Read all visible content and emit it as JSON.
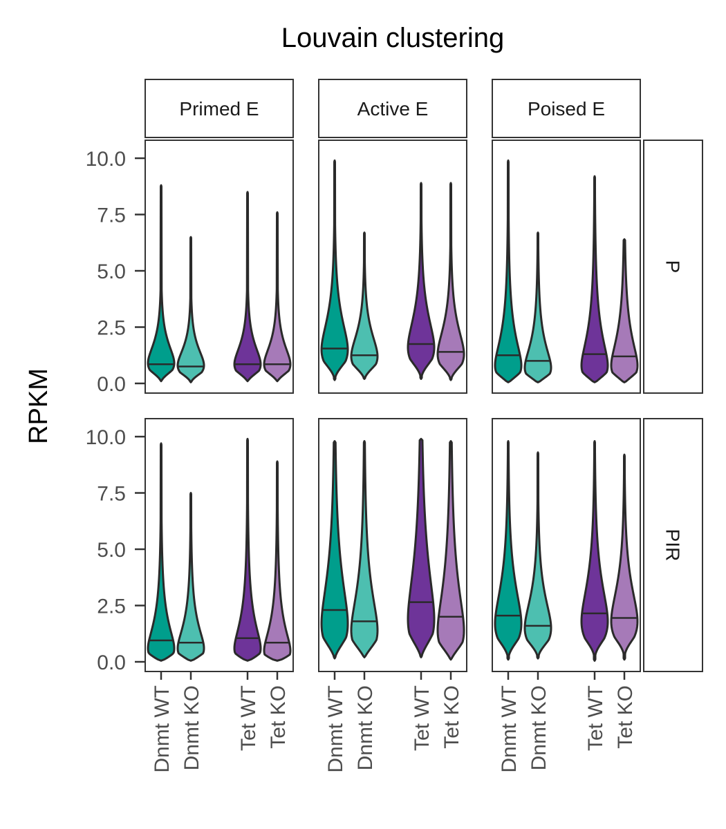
{
  "chart_data": {
    "type": "violin",
    "title": "Louvain clustering",
    "ylabel": "RPKM",
    "xlabel": "",
    "ylim": [
      0,
      10.4
    ],
    "yticks": [
      0,
      2.5,
      5,
      7.5,
      10
    ],
    "ytick_labels": [
      "0.0",
      "2.5",
      "5.0",
      "7.5",
      "10.0"
    ],
    "categories": [
      "Dnmt WT",
      "Dnmt KO",
      "Tet WT",
      "Tet KO"
    ],
    "column_facets": [
      "Primed E",
      "Active E",
      "Poised E"
    ],
    "row_facets": [
      "P",
      "PIR"
    ],
    "colors": {
      "Dnmt WT": "#009E8C",
      "Dnmt KO": "#4DBFB0",
      "Tet WT": "#6E3499",
      "Tet KO": "#A67AB8",
      "outline": "#2a2a2a"
    },
    "grid": false,
    "legend": "none",
    "panels": [
      {
        "row": "P",
        "col": "Primed E",
        "violins": [
          {
            "group": "Dnmt WT",
            "min": 0.1,
            "max": 8.8,
            "median": 0.85,
            "mode": 0.9,
            "spread": 0.5
          },
          {
            "group": "Dnmt KO",
            "min": 0.05,
            "max": 6.5,
            "median": 0.75,
            "mode": 0.8,
            "spread": 0.45
          },
          {
            "group": "Tet WT",
            "min": 0.1,
            "max": 8.5,
            "median": 0.85,
            "mode": 0.85,
            "spread": 0.5
          },
          {
            "group": "Tet KO",
            "min": 0.1,
            "max": 7.6,
            "median": 0.85,
            "mode": 0.85,
            "spread": 0.5
          }
        ]
      },
      {
        "row": "P",
        "col": "Active E",
        "violins": [
          {
            "group": "Dnmt WT",
            "min": 0.15,
            "max": 9.9,
            "median": 1.55,
            "mode": 1.5,
            "spread": 0.8
          },
          {
            "group": "Dnmt KO",
            "min": 0.2,
            "max": 6.7,
            "median": 1.25,
            "mode": 1.2,
            "spread": 0.6
          },
          {
            "group": "Tet WT",
            "min": 0.2,
            "max": 8.9,
            "median": 1.75,
            "mode": 1.6,
            "spread": 0.8
          },
          {
            "group": "Tet KO",
            "min": 0.15,
            "max": 8.9,
            "median": 1.4,
            "mode": 1.3,
            "spread": 0.7
          }
        ]
      },
      {
        "row": "P",
        "col": "Poised E",
        "violins": [
          {
            "group": "Dnmt WT",
            "min": 0.05,
            "max": 9.9,
            "median": 1.25,
            "mode": 0.8,
            "spread": 0.8
          },
          {
            "group": "Dnmt KO",
            "min": 0.05,
            "max": 6.7,
            "median": 1.0,
            "mode": 0.7,
            "spread": 0.65
          },
          {
            "group": "Tet WT",
            "min": 0.05,
            "max": 9.2,
            "median": 1.3,
            "mode": 0.8,
            "spread": 0.85
          },
          {
            "group": "Tet KO",
            "min": 0.05,
            "max": 6.4,
            "median": 1.2,
            "mode": 0.8,
            "spread": 0.8
          }
        ]
      },
      {
        "row": "PIR",
        "col": "Primed E",
        "violins": [
          {
            "group": "Dnmt WT",
            "min": 0.05,
            "max": 9.7,
            "median": 0.95,
            "mode": 0.6,
            "spread": 0.7
          },
          {
            "group": "Dnmt KO",
            "min": 0.05,
            "max": 7.5,
            "median": 0.85,
            "mode": 0.6,
            "spread": 0.65
          },
          {
            "group": "Tet WT",
            "min": 0.05,
            "max": 9.9,
            "median": 1.05,
            "mode": 0.6,
            "spread": 0.75
          },
          {
            "group": "Tet KO",
            "min": 0.05,
            "max": 8.9,
            "median": 0.85,
            "mode": 0.5,
            "spread": 0.7
          }
        ]
      },
      {
        "row": "PIR",
        "col": "Active E",
        "violins": [
          {
            "group": "Dnmt WT",
            "min": 0.15,
            "max": 9.8,
            "median": 2.3,
            "mode": 1.7,
            "spread": 1.3
          },
          {
            "group": "Dnmt KO",
            "min": 0.2,
            "max": 9.8,
            "median": 1.8,
            "mode": 1.4,
            "spread": 1.1
          },
          {
            "group": "Tet WT",
            "min": 0.2,
            "max": 9.9,
            "median": 2.65,
            "mode": 1.9,
            "spread": 1.5
          },
          {
            "group": "Tet KO",
            "min": 0.1,
            "max": 9.8,
            "median": 2.0,
            "mode": 1.4,
            "spread": 1.3
          }
        ]
      },
      {
        "row": "PIR",
        "col": "Poised E",
        "violins": [
          {
            "group": "Dnmt WT",
            "min": 0.1,
            "max": 9.8,
            "median": 2.05,
            "mode": 1.7,
            "spread": 1.0
          },
          {
            "group": "Dnmt KO",
            "min": 0.15,
            "max": 9.3,
            "median": 1.6,
            "mode": 1.5,
            "spread": 0.8
          },
          {
            "group": "Tet WT",
            "min": 0.05,
            "max": 9.8,
            "median": 2.15,
            "mode": 1.8,
            "spread": 1.0
          },
          {
            "group": "Tet KO",
            "min": 0.1,
            "max": 9.2,
            "median": 1.95,
            "mode": 1.8,
            "spread": 0.9
          }
        ]
      }
    ]
  }
}
